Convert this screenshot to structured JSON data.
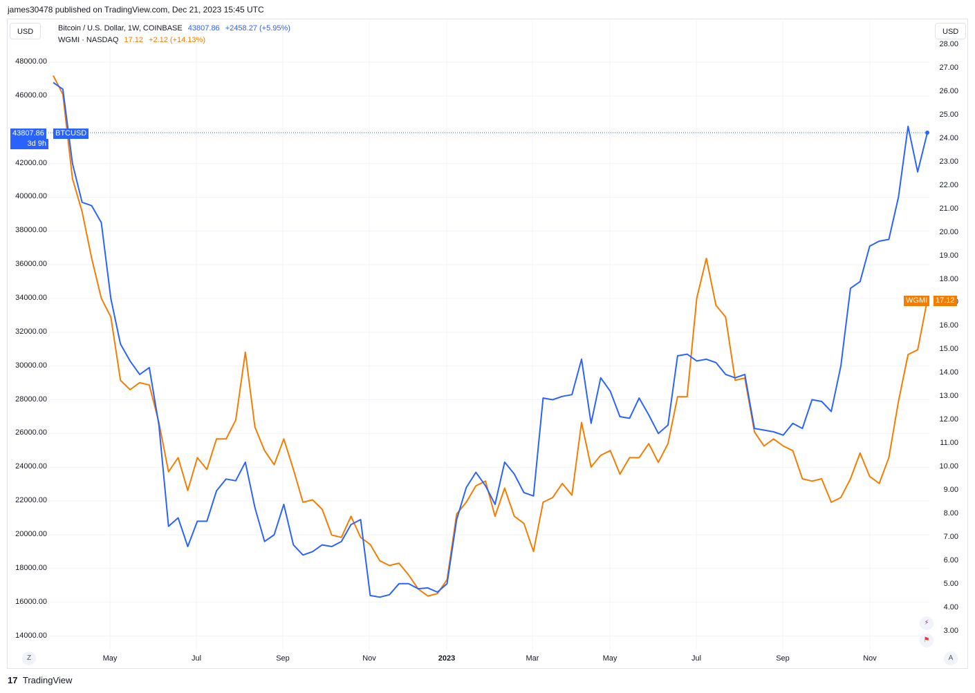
{
  "header": {
    "published_by": "james30478 published on TradingView.com, Dec 21, 2023 15:45 UTC"
  },
  "controls": {
    "left_currency": "USD",
    "right_currency": "USD",
    "z_button": "Z",
    "a_button": "A"
  },
  "legend": {
    "btc": {
      "name": "Bitcoin / U.S. Dollar, 1W, COINBASE",
      "price": "43807.86",
      "change": "+2458.27 (+5.95%)"
    },
    "wgmi": {
      "name": "WGMI · NASDAQ",
      "price": "17.12",
      "change": "+2.12 (+14.13%)"
    }
  },
  "tags": {
    "btc_price": "43807.86",
    "btc_symbol": "BTCUSD",
    "btc_countdown": "3d 9h",
    "wgmi_symbol": "WGMI",
    "wgmi_price": "17.12"
  },
  "footer": {
    "brand": "TradingView",
    "logo_glyph": "17"
  },
  "colors": {
    "btc": "#2962ff",
    "wgmi": "#f57c00",
    "grid": "#f0f3fa"
  },
  "chart_data": {
    "type": "line",
    "x_ticks": [
      "May",
      "Jul",
      "Sep",
      "Nov",
      "2023",
      "Mar",
      "May",
      "Jul",
      "Sep",
      "Nov"
    ],
    "y_left_ticks": [
      "48000.00",
      "46000.00",
      "42000.00",
      "40000.00",
      "38000.00",
      "36000.00",
      "34000.00",
      "32000.00",
      "30000.00",
      "28000.00",
      "26000.00",
      "24000.00",
      "22000.00",
      "20000.00",
      "18000.00",
      "16000.00",
      "14000.00"
    ],
    "y_right_ticks": [
      "28.00",
      "27.00",
      "26.00",
      "25.00",
      "24.00",
      "23.00",
      "22.00",
      "21.00",
      "20.00",
      "19.00",
      "18.00",
      "17.00",
      "16.00",
      "15.00",
      "14.00",
      "13.00",
      "12.00",
      "11.00",
      "10.00",
      "9.00",
      "8.00",
      "7.00",
      "6.00",
      "5.00",
      "4.00",
      "3.00"
    ],
    "y_left_range": [
      14000,
      48000
    ],
    "y_right_range": [
      3,
      28
    ],
    "grid": true,
    "series": [
      {
        "name": "BTCUSD",
        "axis": "left",
        "values": [
          46800,
          46400,
          42000,
          39700,
          39500,
          38500,
          34000,
          31300,
          30300,
          29500,
          29900,
          26500,
          20500,
          21000,
          19300,
          20800,
          20800,
          22600,
          23300,
          23200,
          24300,
          21600,
          19600,
          20000,
          21800,
          19400,
          18800,
          19000,
          19400,
          19300,
          19600,
          20600,
          20900,
          16400,
          16300,
          16450,
          17100,
          17100,
          16800,
          16850,
          16600,
          17100,
          20900,
          22800,
          23700,
          22900,
          21800,
          24300,
          23600,
          22500,
          22300,
          28100,
          28000,
          28200,
          28300,
          30400,
          26600,
          29300,
          28500,
          27000,
          26900,
          28100,
          27100,
          26000,
          26500,
          30600,
          30700,
          30300,
          30400,
          30200,
          29500,
          29300,
          29500,
          26300,
          26200,
          26100,
          25900,
          26600,
          26300,
          28000,
          27900,
          27300,
          30000,
          34600,
          35000,
          37100,
          37400,
          37500,
          40000,
          44200,
          41500,
          43807.86
        ]
      },
      {
        "name": "WGMI",
        "axis": "right",
        "values": [
          26.7,
          25.9,
          22.3,
          20.9,
          18.9,
          17.2,
          16.4,
          13.7,
          13.3,
          13.6,
          13.5,
          11.9,
          9.8,
          10.4,
          9.0,
          10.4,
          9.9,
          11.2,
          11.2,
          12.0,
          14.9,
          11.7,
          10.7,
          10.1,
          11.2,
          9.9,
          8.5,
          8.6,
          8.2,
          7.1,
          7.0,
          7.9,
          7.0,
          6.7,
          6.0,
          5.8,
          5.9,
          5.4,
          4.8,
          4.5,
          4.6,
          5.2,
          8.0,
          8.5,
          9.2,
          9.4,
          7.9,
          9.1,
          7.9,
          7.6,
          6.4,
          8.5,
          8.7,
          9.3,
          8.8,
          11.9,
          10.0,
          10.5,
          10.7,
          9.7,
          10.4,
          10.4,
          11.0,
          10.2,
          11.0,
          13.0,
          13.0,
          17.2,
          18.9,
          16.9,
          16.4,
          13.7,
          13.8,
          11.5,
          10.9,
          11.2,
          10.9,
          10.7,
          9.5,
          9.4,
          9.5,
          8.5,
          8.7,
          9.5,
          10.6,
          9.6,
          9.3,
          10.4,
          12.8,
          14.8,
          15.0,
          17.12
        ]
      }
    ]
  }
}
